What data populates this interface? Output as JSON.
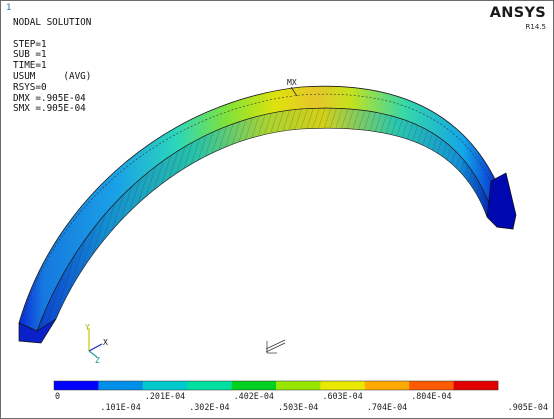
{
  "window_number": "1",
  "brand": "ANSYS",
  "release": "R14.5",
  "solution_info": {
    "title": "NODAL SOLUTION",
    "step": "STEP=1",
    "sub": "SUB =1",
    "time": "TIME=1",
    "result_item": "USUM     (AVG)",
    "rsys": "RSYS=0",
    "dmx": "DMX =.905E-04",
    "smx": "SMX =.905E-04"
  },
  "max_marker": "MX",
  "triad": {
    "x": "X",
    "y": "Y",
    "z": "Z"
  },
  "legend": {
    "colors": [
      "#0000ff",
      "#008fe8",
      "#00c9cc",
      "#00e0a0",
      "#00d020",
      "#98e600",
      "#e8e800",
      "#ffaa00",
      "#ff5a00",
      "#e00000"
    ],
    "labels_top": [
      "0",
      ".201E-04",
      ".402E-04",
      ".603E-04",
      ".804E-04"
    ],
    "labels_bottom": [
      ".101E-04",
      ".302E-04",
      ".503E-04",
      ".704E-04",
      ".905E-04"
    ]
  }
}
